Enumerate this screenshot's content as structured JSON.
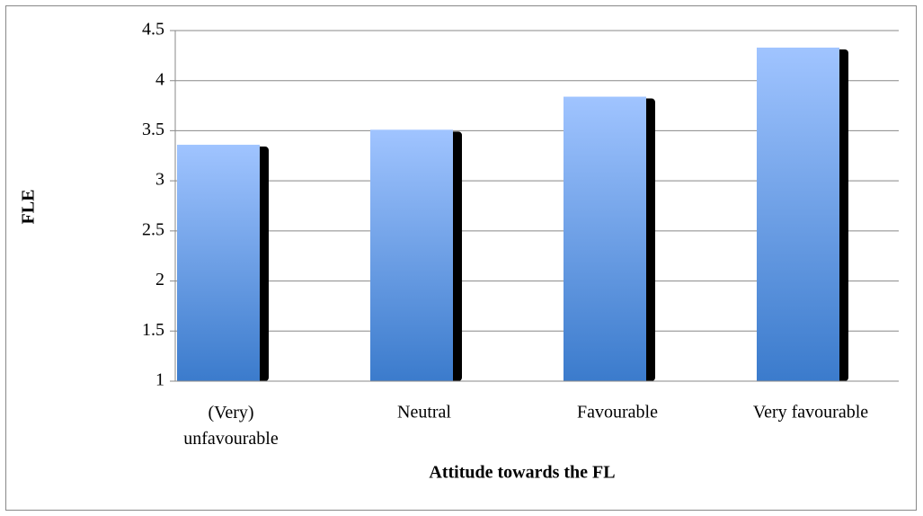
{
  "chart_data": {
    "type": "bar",
    "x_label": "Attitude towards the FL",
    "y_label": "FLE",
    "categories": [
      "(Very) unfavourable",
      "Neutral",
      "Favourable",
      "Very favourable"
    ],
    "values": [
      3.36,
      3.51,
      3.84,
      4.33
    ],
    "color": [
      "#a0c4ff",
      "#3b7bcc"
    ],
    "ylim": [
      1,
      4.5
    ],
    "yticks": [
      1,
      1.5,
      2,
      2.5,
      3,
      3.5,
      4,
      4.5
    ],
    "grid": true
  }
}
